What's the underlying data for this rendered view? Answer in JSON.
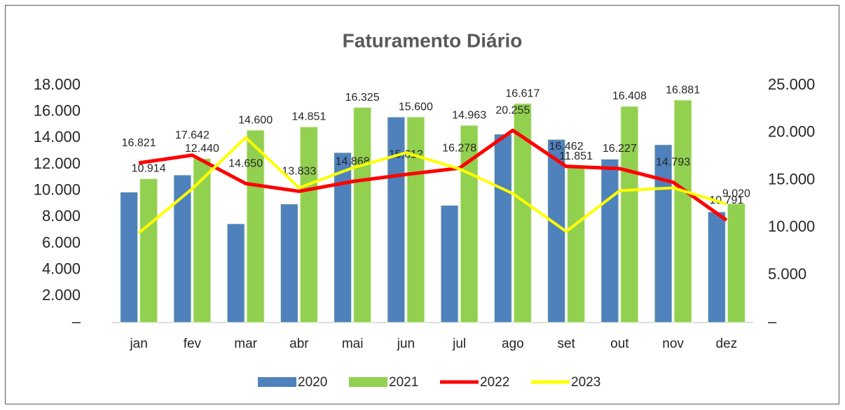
{
  "chart_data": {
    "type": "bar_line",
    "title": "Faturamento Diário",
    "categories": [
      "jan",
      "fev",
      "mar",
      "abr",
      "mai",
      "jun",
      "jul",
      "ago",
      "set",
      "out",
      "nov",
      "dez"
    ],
    "series": [
      {
        "name": "2020",
        "type": "bar",
        "color": "#4f81bd",
        "values": [
          9900,
          11200,
          7500,
          9000,
          12900,
          15600,
          8900,
          14300,
          13900,
          12400,
          13500,
          8400
        ]
      },
      {
        "name": "2021",
        "type": "bar",
        "color": "#92d050",
        "values": [
          10914,
          12440,
          14600,
          14851,
          16325,
          15600,
          14963,
          16617,
          11851,
          16408,
          16881,
          9020
        ],
        "value_labels": [
          "10.914",
          "12.440",
          "14.600",
          "14.851",
          "16.325",
          "15.600",
          "14.963",
          "16.617",
          "11.851",
          "16.408",
          "16.881",
          "9.020"
        ]
      },
      {
        "name": "2022",
        "type": "line",
        "axis": "y2",
        "color": "#ff0000",
        "values": [
          16821,
          17642,
          14650,
          13833,
          14868,
          15612,
          16278,
          20255,
          16462,
          16227,
          14793,
          10791
        ],
        "value_labels": [
          "16.821",
          "17.642",
          "14.650",
          "13.833",
          "14.868",
          "15.612",
          "16.278",
          "20.255",
          "16.462",
          "16.227",
          "14.793",
          "10.791"
        ]
      },
      {
        "name": "2023",
        "type": "line",
        "axis": "y2",
        "color": "#ffff00",
        "values": [
          9440,
          14100,
          19500,
          14200,
          16300,
          17900,
          16200,
          13600,
          9600,
          13900,
          14200,
          12500
        ]
      }
    ],
    "ylim": [
      0,
      18000
    ],
    "yticks": [
      {
        "value": 0,
        "label": "–"
      },
      {
        "value": 2000,
        "label": "2.000"
      },
      {
        "value": 4000,
        "label": "4.000"
      },
      {
        "value": 6000,
        "label": "6.000"
      },
      {
        "value": 8000,
        "label": "8.000"
      },
      {
        "value": 10000,
        "label": "10.000"
      },
      {
        "value": 12000,
        "label": "12.000"
      },
      {
        "value": 14000,
        "label": "14.000"
      },
      {
        "value": 16000,
        "label": "16.000"
      },
      {
        "value": 18000,
        "label": "18.000"
      }
    ],
    "y2lim": [
      0,
      25000
    ],
    "y2ticks": [
      {
        "value": 0,
        "label": "–"
      },
      {
        "value": 5000,
        "label": "5.000"
      },
      {
        "value": 10000,
        "label": "10.000"
      },
      {
        "value": 15000,
        "label": "15.000"
      },
      {
        "value": 20000,
        "label": "20.000"
      },
      {
        "value": 25000,
        "label": "25.000"
      }
    ],
    "legend": "bottom"
  }
}
